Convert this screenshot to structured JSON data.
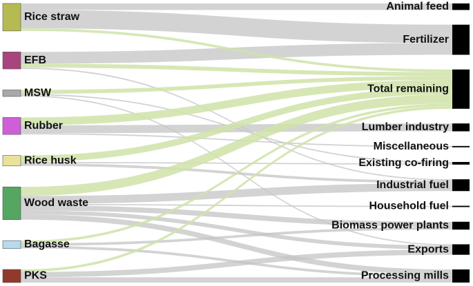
{
  "chart_data": {
    "type": "sankey",
    "sources": [
      {
        "name": "Rice straw",
        "color": "#b5bb52"
      },
      {
        "name": "EFB",
        "color": "#a8457f"
      },
      {
        "name": "MSW",
        "color": "#a9a9a9"
      },
      {
        "name": "Rubber",
        "color": "#cf5fd6"
      },
      {
        "name": "Rice husk",
        "color": "#e8e29a"
      },
      {
        "name": "Wood waste",
        "color": "#55a661"
      },
      {
        "name": "Bagasse",
        "color": "#b5dcee"
      },
      {
        "name": "PKS",
        "color": "#8f3a2c"
      }
    ],
    "targets": [
      {
        "name": "Animal feed",
        "color": "#000000"
      },
      {
        "name": "Fertilizer",
        "color": "#000000"
      },
      {
        "name": "Total remaining",
        "color": "#000000"
      },
      {
        "name": "Lumber industry",
        "color": "#000000"
      },
      {
        "name": "Miscellaneous",
        "color": "#000000"
      },
      {
        "name": "Existing co-firing",
        "color": "#000000"
      },
      {
        "name": "Industrial fuel",
        "color": "#000000"
      },
      {
        "name": "Household fuel",
        "color": "#000000"
      },
      {
        "name": "Biomass power plants",
        "color": "#000000"
      },
      {
        "name": "Exports",
        "color": "#000000"
      },
      {
        "name": "Processing mills",
        "color": "#000000"
      }
    ],
    "link_color": "#c4c4c4",
    "highlight_target": "Total remaining",
    "highlight_color": "#cfe3a8",
    "links": [
      {
        "source": "Rice straw",
        "target": "Animal feed",
        "value": 10
      },
      {
        "source": "Rice straw",
        "target": "Fertilizer",
        "value": 28
      },
      {
        "source": "Rice straw",
        "target": "Total remaining",
        "value": 4
      },
      {
        "source": "EFB",
        "target": "Fertilizer",
        "value": 18
      },
      {
        "source": "EFB",
        "target": "Total remaining",
        "value": 6
      },
      {
        "source": "EFB",
        "target": "Industrial fuel",
        "value": 2
      },
      {
        "source": "MSW",
        "target": "Total remaining",
        "value": 6
      },
      {
        "source": "MSW",
        "target": "Existing co-firing",
        "value": 2
      },
      {
        "source": "MSW",
        "target": "Exports",
        "value": 2
      },
      {
        "source": "Rubber",
        "target": "Total remaining",
        "value": 12
      },
      {
        "source": "Rubber",
        "target": "Lumber industry",
        "value": 12
      },
      {
        "source": "Rubber",
        "target": "Miscellaneous",
        "value": 2
      },
      {
        "source": "Rice husk",
        "target": "Total remaining",
        "value": 10
      },
      {
        "source": "Rice husk",
        "target": "Existing co-firing",
        "value": 2
      },
      {
        "source": "Rice husk",
        "target": "Industrial fuel",
        "value": 4
      },
      {
        "source": "Wood waste",
        "target": "Total remaining",
        "value": 14
      },
      {
        "source": "Wood waste",
        "target": "Industrial fuel",
        "value": 12
      },
      {
        "source": "Wood waste",
        "target": "Household fuel",
        "value": 2
      },
      {
        "source": "Wood waste",
        "target": "Biomass power plants",
        "value": 8
      },
      {
        "source": "Wood waste",
        "target": "Exports",
        "value": 6
      },
      {
        "source": "Wood waste",
        "target": "Processing mills",
        "value": 8
      },
      {
        "source": "Bagasse",
        "target": "Total remaining",
        "value": 4
      },
      {
        "source": "Bagasse",
        "target": "Biomass power plants",
        "value": 4
      },
      {
        "source": "Bagasse",
        "target": "Processing mills",
        "value": 4
      },
      {
        "source": "PKS",
        "target": "Total remaining",
        "value": 4
      },
      {
        "source": "PKS",
        "target": "Exports",
        "value": 8
      },
      {
        "source": "PKS",
        "target": "Processing mills",
        "value": 8
      }
    ]
  }
}
